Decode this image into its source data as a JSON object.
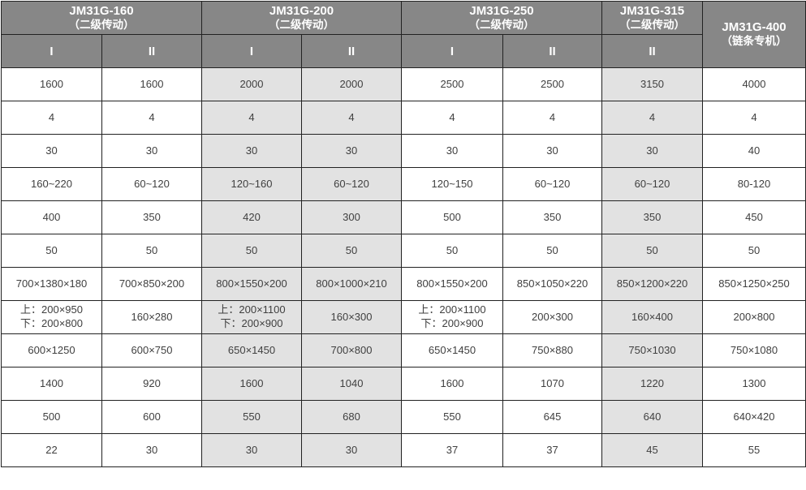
{
  "colors": {
    "header_bg": "#878787",
    "header_text": "#ffffff",
    "shade_bg": "#e2e2e2",
    "border": "#222222",
    "body_text": "#404040",
    "page_bg": "#ffffff"
  },
  "table": {
    "header_groups": [
      {
        "name": "JM31G-160",
        "sub": "（二级传动）"
      },
      {
        "name": "JM31G-200",
        "sub": "（二级传动）"
      },
      {
        "name": "JM31G-250",
        "sub": "（二级传动）"
      },
      {
        "name": "JM31G-315",
        "sub": "（二级传动）"
      },
      {
        "name": "JM31G-400",
        "sub": "（链条专机）"
      }
    ],
    "sub_headers": [
      "I",
      "II",
      "I",
      "II",
      "I",
      "II",
      "II"
    ],
    "shaded_columns": [
      2,
      3,
      6
    ],
    "rows": [
      [
        "1600",
        "1600",
        "2000",
        "2000",
        "2500",
        "2500",
        "3150",
        "4000"
      ],
      [
        "4",
        "4",
        "4",
        "4",
        "4",
        "4",
        "4",
        "4"
      ],
      [
        "30",
        "30",
        "30",
        "30",
        "30",
        "30",
        "30",
        "40"
      ],
      [
        "160~220",
        "60~120",
        "120~160",
        "60~120",
        "120~150",
        "60~120",
        "60~120",
        "80-120"
      ],
      [
        "400",
        "350",
        "420",
        "300",
        "500",
        "350",
        "350",
        "450"
      ],
      [
        "50",
        "50",
        "50",
        "50",
        "50",
        "50",
        "50",
        "50"
      ],
      [
        "700×1380×180",
        "700×850×200",
        "800×1550×200",
        "800×1000×210",
        "800×1550×200",
        "850×1050×220",
        "850×1200×220",
        "850×1250×250"
      ],
      [
        "上：200×950\n下：200×800",
        "160×280",
        "上：200×1100\n下：200×900",
        "160×300",
        "上：200×1100\n下：200×900",
        "200×300",
        "160×400",
        "200×800"
      ],
      [
        "600×1250",
        "600×750",
        "650×1450",
        "700×800",
        "650×1450",
        "750×880",
        "750×1030",
        "750×1080"
      ],
      [
        "1400",
        "920",
        "1600",
        "1040",
        "1600",
        "1070",
        "1220",
        "1300"
      ],
      [
        "500",
        "600",
        "550",
        "680",
        "550",
        "645",
        "640",
        "640×420"
      ],
      [
        "22",
        "30",
        "30",
        "30",
        "37",
        "37",
        "45",
        "55"
      ]
    ]
  }
}
